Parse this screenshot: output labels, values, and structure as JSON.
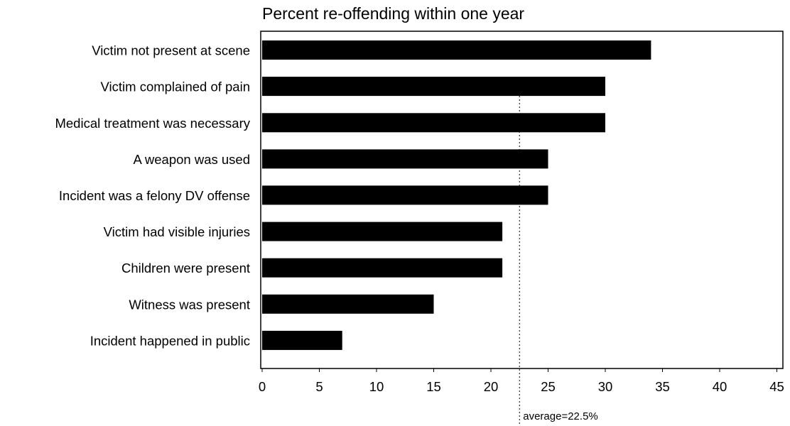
{
  "chart_data": {
    "type": "bar",
    "orientation": "horizontal",
    "title": "Percent re-offending within one year",
    "xlabel": "",
    "ylabel": "",
    "categories": [
      "Victim not present at scene",
      "Victim complained of pain",
      "Medical treatment was necessary",
      "A weapon was used",
      "Incident was a felony DV offense",
      "Victim had visible injuries",
      "Children were present",
      "Witness was present",
      "Incident happened in public"
    ],
    "values": [
      34,
      30,
      30,
      25,
      25,
      21,
      21,
      15,
      7
    ],
    "xlim": [
      0,
      45
    ],
    "xticks": [
      0,
      5,
      10,
      15,
      20,
      25,
      30,
      35,
      40,
      45
    ],
    "reference_line": {
      "value": 22.5,
      "label": "average=22.5%"
    },
    "grid": false,
    "legend": "none",
    "bar_color": "#000000"
  }
}
